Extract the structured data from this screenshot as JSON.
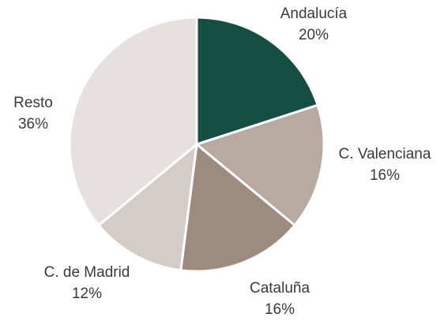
{
  "chart_data": {
    "type": "pie",
    "categories": [
      "Andalucía",
      "C. Valenciana",
      "Cataluña",
      "C. de Madrid",
      "Resto"
    ],
    "values": [
      20,
      16,
      16,
      12,
      36
    ],
    "value_labels": [
      "20%",
      "16%",
      "16%",
      "12%",
      "36%"
    ],
    "colors": [
      "#154f43",
      "#b8aaa1",
      "#9e8b7f",
      "#d4ccc7",
      "#e6e1de"
    ]
  }
}
